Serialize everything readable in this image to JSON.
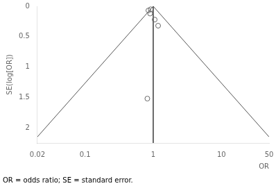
{
  "chart_data": {
    "type": "scatter",
    "xlabel": "OR",
    "ylabel": "SE(log[OR])",
    "caption": "OR = odds ratio; SE = standard error.",
    "log": "x",
    "grid": false,
    "xlim": [
      0.02,
      50
    ],
    "xticks": [
      0.02,
      0.1,
      1,
      10,
      50
    ],
    "ylim": [
      2.25,
      0
    ],
    "yticks": [
      0,
      0.5,
      1,
      1.5,
      2
    ],
    "series": [
      {
        "type": "line",
        "color": "#555555",
        "line_style": "solid",
        "x": [
          0.02,
          1,
          50
        ],
        "values": [
          2.15,
          0,
          2.15
        ]
      },
      {
        "type": "line",
        "color": "#555555",
        "line_style": "solid",
        "x": [
          1,
          1
        ],
        "values": [
          0,
          2.25
        ]
      },
      {
        "type": "scatter",
        "color": "#666666",
        "marker": "circle",
        "x": [
          0.85,
          0.9,
          0.92,
          1.05,
          1.18,
          0.82
        ],
        "values": [
          0.07,
          0.12,
          0.05,
          0.22,
          0.32,
          1.52
        ]
      }
    ]
  }
}
